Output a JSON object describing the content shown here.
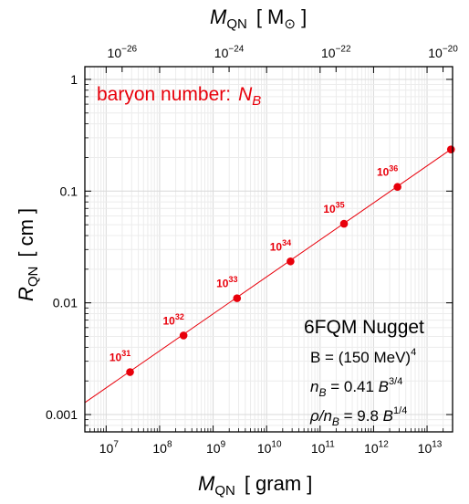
{
  "chart_data": {
    "type": "scatter",
    "title": "",
    "x_axis": {
      "label_main": "M",
      "label_sub": "QN",
      "label_unit": "[ gram ]",
      "scale": "log",
      "range": [
        4000000,
        30000000000000.0
      ],
      "ticks": [
        {
          "base": "10",
          "exp": "7"
        },
        {
          "base": "10",
          "exp": "8"
        },
        {
          "base": "10",
          "exp": "9"
        },
        {
          "base": "10",
          "exp": "10"
        },
        {
          "base": "10",
          "exp": "11"
        },
        {
          "base": "10",
          "exp": "12"
        },
        {
          "base": "10",
          "exp": "13"
        }
      ]
    },
    "x_axis_top": {
      "label_main": "M",
      "label_sub": "QN",
      "label_unit_open": "[ M",
      "label_unit_sub": "⊙",
      "label_unit_close": " ]",
      "scale": "log",
      "ticks": [
        {
          "base": "10",
          "exp": "−26"
        },
        {
          "base": "10",
          "exp": "−24"
        },
        {
          "base": "10",
          "exp": "−22"
        },
        {
          "base": "10",
          "exp": "−20"
        }
      ]
    },
    "y_axis": {
      "label_main": "R",
      "label_sub": "QN",
      "label_unit": "[ cm ]",
      "scale": "log",
      "range": [
        0.0007,
        1.3
      ],
      "ticks": [
        "0.001",
        "0.01",
        "0.1",
        "1"
      ]
    },
    "grid": true,
    "series": [
      {
        "name": "baryon number: N_B",
        "color": "#e8000b",
        "points": [
          {
            "x": 28000000.0,
            "y": 0.0024,
            "label_base": "10",
            "label_exp": "31"
          },
          {
            "x": 280000000.0,
            "y": 0.0051,
            "label_base": "10",
            "label_exp": "32"
          },
          {
            "x": 2800000000.0,
            "y": 0.011,
            "label_base": "10",
            "label_exp": "33"
          },
          {
            "x": 28000000000.0,
            "y": 0.0235,
            "label_base": "10",
            "label_exp": "34"
          },
          {
            "x": 280000000000.0,
            "y": 0.051,
            "label_base": "10",
            "label_exp": "35"
          },
          {
            "x": 2800000000000.0,
            "y": 0.109,
            "label_base": "10",
            "label_exp": "36"
          },
          {
            "x": 28000000000000.0,
            "y": 0.236,
            "label_base": "",
            "label_exp": ""
          }
        ]
      }
    ],
    "fit_line": {
      "x": [
        4000000,
        30000000000000.0
      ],
      "y": [
        0.00128,
        0.242
      ]
    },
    "legend_title": {
      "text": "baryon number:",
      "var": "N",
      "var_sub": "B"
    },
    "annotation": {
      "title": "6FQM Nugget",
      "line1_text": "B = (150 MeV)",
      "line1_exp": "4",
      "line2_var": "n",
      "line2_sub": "B",
      "line2_text": " = 0.41 ",
      "line2_var2": "B",
      "line2_exp": "3/4",
      "line3_var": "ρ/n",
      "line3_sub": "B",
      "line3_text": " = 9.8 ",
      "line3_var2": "B",
      "line3_exp": "1/4"
    }
  }
}
